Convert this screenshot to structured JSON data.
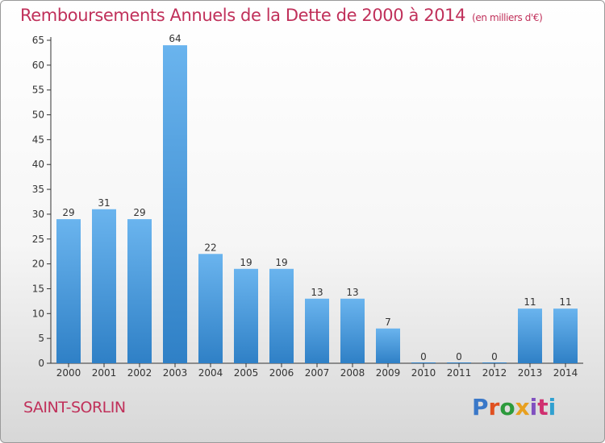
{
  "header": {
    "title": "Remboursements Annuels de la Dette de 2000 à 2014",
    "unit": "(en milliers d'€)"
  },
  "footer": {
    "commune": "SAINT-SORLIN",
    "logo": "Proxiti"
  },
  "colors": {
    "title": "#c0305a",
    "bar_light": "#6ab4ee",
    "bar_dark": "#2f80c6",
    "logo": [
      "#3a78c8",
      "#e05020",
      "#2c9a3c",
      "#e8a020",
      "#8050c0",
      "#d03070",
      "#30a0d0"
    ]
  },
  "chart_data": {
    "type": "bar",
    "categories": [
      "2000",
      "2001",
      "2002",
      "2003",
      "2004",
      "2005",
      "2006",
      "2007",
      "2008",
      "2009",
      "2010",
      "2011",
      "2012",
      "2013",
      "2014"
    ],
    "values": [
      29,
      31,
      29,
      64,
      22,
      19,
      19,
      13,
      13,
      7,
      0,
      0,
      0,
      11,
      11
    ],
    "data_labels": [
      "29",
      "31",
      "29",
      "64",
      "22",
      "19",
      "19",
      "13",
      "13",
      "7",
      "0",
      "0",
      "0",
      "11",
      "11"
    ],
    "title": "Remboursements Annuels de la Dette de 2000 à 2014",
    "xlabel": "",
    "ylabel": "",
    "ylim": [
      0,
      65
    ],
    "yticks": [
      0,
      5,
      10,
      15,
      20,
      25,
      30,
      35,
      40,
      45,
      50,
      55,
      60,
      65
    ],
    "grid": false,
    "legend": "none"
  }
}
